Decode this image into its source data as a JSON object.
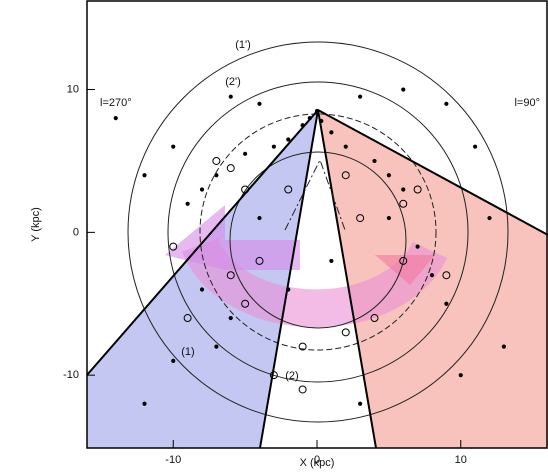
{
  "chart_data": {
    "type": "scatter",
    "x_label": "X (kpc)",
    "y_label": "Y (kpc)",
    "xlim": [
      -16,
      16
    ],
    "ylim": [
      -15.1,
      16.2
    ],
    "xticks": [
      -10,
      0,
      10
    ],
    "yticks": [
      -10,
      0,
      10
    ],
    "annotations": [
      "l=270°",
      "l=90°",
      "(1')",
      "(2')",
      "(1)",
      "(2)"
    ],
    "series": [
      {
        "marker": "dot",
        "color": "#000000",
        "x": [
          0,
          -0.5,
          0.3,
          -1,
          1,
          -2,
          2,
          -3,
          -5,
          -7,
          -8,
          -9,
          4,
          5,
          6,
          -4,
          -6,
          3,
          6,
          9,
          -10,
          -12,
          12,
          8,
          9,
          -6,
          -7,
          -10,
          3,
          10,
          -12,
          13,
          -2,
          1,
          -4,
          5,
          7,
          -8,
          11,
          -14
        ],
        "y": [
          8.5,
          8,
          7.8,
          7.5,
          7,
          6.5,
          6,
          6,
          5.5,
          4,
          3,
          2,
          5,
          4,
          3,
          9,
          9.5,
          9.5,
          10,
          9,
          6,
          4,
          1,
          -3,
          -5,
          -6,
          -8,
          -9,
          -12,
          -10,
          -12,
          -8,
          -4,
          -2,
          1,
          1,
          -1,
          -4,
          6,
          8
        ]
      },
      {
        "marker": "circle",
        "color": "#000000",
        "x": [
          -7,
          -6,
          -5,
          -10,
          -4,
          -5,
          -6,
          3,
          6,
          7,
          6,
          4,
          2,
          -1,
          -3,
          -1,
          -9,
          9,
          2,
          -2
        ],
        "y": [
          5,
          4.5,
          3,
          -1,
          -2,
          -5,
          -3,
          1,
          2,
          3,
          -2,
          -6,
          -7,
          -8,
          -10,
          -11,
          -6,
          -3,
          4,
          3
        ]
      }
    ]
  }
}
